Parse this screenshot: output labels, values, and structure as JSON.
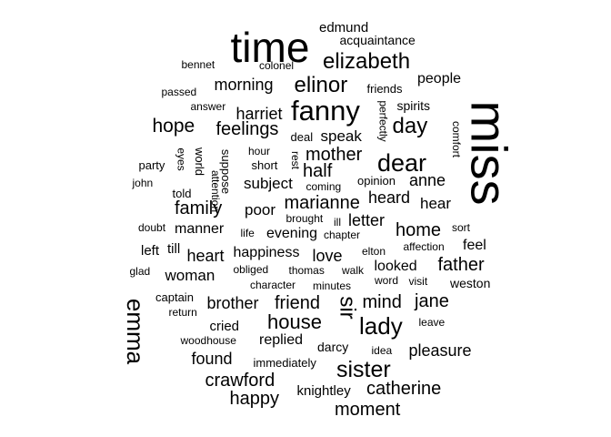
{
  "text_color": "#000000",
  "words": [
    {
      "text": "miss",
      "weight": 100
    },
    {
      "text": "time",
      "weight": 65
    },
    {
      "text": "fanny",
      "weight": 46
    },
    {
      "text": "emma",
      "weight": 40
    },
    {
      "text": "dear",
      "weight": 40
    },
    {
      "text": "elizabeth",
      "weight": 38
    },
    {
      "text": "lady",
      "weight": 38
    },
    {
      "text": "sir",
      "weight": 37
    },
    {
      "text": "elinor",
      "weight": 35
    },
    {
      "text": "sister",
      "weight": 35
    },
    {
      "text": "day",
      "weight": 35
    },
    {
      "text": "house",
      "weight": 33
    },
    {
      "text": "hope",
      "weight": 33
    },
    {
      "text": "mother",
      "weight": 31
    },
    {
      "text": "feelings",
      "weight": 31
    },
    {
      "text": "family",
      "weight": 30
    },
    {
      "text": "marianne",
      "weight": 30
    },
    {
      "text": "happy",
      "weight": 30
    },
    {
      "text": "friend",
      "weight": 30
    },
    {
      "text": "moment",
      "weight": 30
    },
    {
      "text": "catherine",
      "weight": 30
    },
    {
      "text": "half",
      "weight": 30
    },
    {
      "text": "crawford",
      "weight": 30
    },
    {
      "text": "mind",
      "weight": 30
    },
    {
      "text": "home",
      "weight": 30
    },
    {
      "text": "jane",
      "weight": 29
    },
    {
      "text": "father",
      "weight": 29
    },
    {
      "text": "pleasure",
      "weight": 28
    },
    {
      "text": "harriet",
      "weight": 28
    },
    {
      "text": "morning",
      "weight": 28
    },
    {
      "text": "heart",
      "weight": 27
    },
    {
      "text": "love",
      "weight": 27
    },
    {
      "text": "heard",
      "weight": 27
    },
    {
      "text": "letter",
      "weight": 27
    },
    {
      "text": "found",
      "weight": 27
    },
    {
      "text": "anne",
      "weight": 27
    },
    {
      "text": "brother",
      "weight": 27
    },
    {
      "text": "speak",
      "weight": 26
    },
    {
      "text": "woman",
      "weight": 26
    },
    {
      "text": "subject",
      "weight": 26
    },
    {
      "text": "poor",
      "weight": 26
    },
    {
      "text": "hear",
      "weight": 26
    },
    {
      "text": "replied",
      "weight": 25
    },
    {
      "text": "looked",
      "weight": 25
    },
    {
      "text": "evening",
      "weight": 25
    },
    {
      "text": "people",
      "weight": 25
    },
    {
      "text": "happiness",
      "weight": 25
    },
    {
      "text": "manner",
      "weight": 25
    },
    {
      "text": "feel",
      "weight": 25
    },
    {
      "text": "knightley",
      "weight": 24
    },
    {
      "text": "left",
      "weight": 24
    },
    {
      "text": "edmund",
      "weight": 24
    },
    {
      "text": "till",
      "weight": 24
    },
    {
      "text": "cried",
      "weight": 24
    },
    {
      "text": "darcy",
      "weight": 23
    },
    {
      "text": "spirits",
      "weight": 23
    },
    {
      "text": "weston",
      "weight": 23
    },
    {
      "text": "acquaintance",
      "weight": 23
    },
    {
      "text": "captain",
      "weight": 22
    },
    {
      "text": "friends",
      "weight": 22
    },
    {
      "text": "immediately",
      "weight": 22
    },
    {
      "text": "suppose",
      "weight": 22
    },
    {
      "text": "world",
      "weight": 22
    },
    {
      "text": "opinion",
      "weight": 22
    },
    {
      "text": "short",
      "weight": 22
    },
    {
      "text": "party",
      "weight": 22
    },
    {
      "text": "told",
      "weight": 22
    },
    {
      "text": "deal",
      "weight": 22
    },
    {
      "text": "thomas",
      "weight": 21
    },
    {
      "text": "life",
      "weight": 21
    },
    {
      "text": "leave",
      "weight": 21
    },
    {
      "text": "elton",
      "weight": 21
    },
    {
      "text": "hour",
      "weight": 21
    },
    {
      "text": "minutes",
      "weight": 21
    },
    {
      "text": "sort",
      "weight": 21
    },
    {
      "text": "idea",
      "weight": 21
    },
    {
      "text": "answer",
      "weight": 21
    },
    {
      "text": "brought",
      "weight": 21
    },
    {
      "text": "walk",
      "weight": 21
    },
    {
      "text": "return",
      "weight": 21
    },
    {
      "text": "comfort",
      "weight": 21
    },
    {
      "text": "colonel",
      "weight": 21
    },
    {
      "text": "passed",
      "weight": 21
    },
    {
      "text": "coming",
      "weight": 21
    },
    {
      "text": "affection",
      "weight": 21
    },
    {
      "text": "doubt",
      "weight": 21
    },
    {
      "text": "obliged",
      "weight": 21
    },
    {
      "text": "eyes",
      "weight": 20
    },
    {
      "text": "word",
      "weight": 20
    },
    {
      "text": "bennet",
      "weight": 20
    },
    {
      "text": "rest",
      "weight": 20
    },
    {
      "text": "perfectly",
      "weight": 20
    },
    {
      "text": "chapter",
      "weight": 20
    },
    {
      "text": "character",
      "weight": 20
    },
    {
      "text": "visit",
      "weight": 20
    },
    {
      "text": "woodhouse",
      "weight": 20
    },
    {
      "text": "glad",
      "weight": 20
    },
    {
      "text": "john",
      "weight": 20
    },
    {
      "text": "attention",
      "weight": 20
    },
    {
      "text": "ill",
      "weight": 20
    }
  ]
}
